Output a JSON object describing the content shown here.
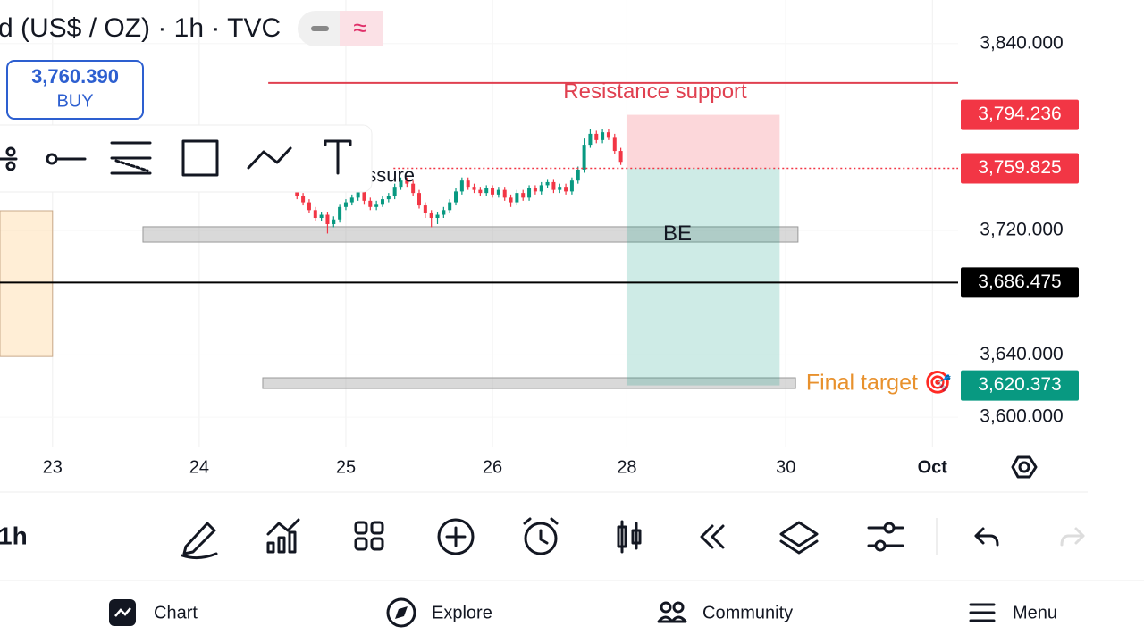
{
  "header": {
    "title": "d (US$ / OZ) · 1h · TVC",
    "quote": {
      "price": "3,760.390",
      "action": "BUY"
    }
  },
  "chart_data": {
    "type": "candlestick",
    "xlim": [
      -8.6,
      148.2
    ],
    "ylim": [
      3584,
      3868
    ],
    "xticks": [
      {
        "value": 0,
        "label": "23"
      },
      {
        "value": 24,
        "label": "24"
      },
      {
        "value": 48,
        "label": "25"
      },
      {
        "value": 72,
        "label": "26"
      },
      {
        "value": 94,
        "label": "28"
      },
      {
        "value": 120,
        "label": "30"
      },
      {
        "value": 144,
        "label": "Oct"
      }
    ],
    "yticks": [
      {
        "value": 3840,
        "label": "3,840.000"
      },
      {
        "value": 3720,
        "label": "3,720.000"
      },
      {
        "value": 3640,
        "label": "3,640.000"
      },
      {
        "value": 3600,
        "label": "3,600.000"
      }
    ],
    "up_color": "#089981",
    "down_color": "#f23645",
    "x": [
      40,
      41,
      42,
      43,
      44,
      45,
      46,
      47,
      48,
      49,
      50,
      51,
      52,
      53,
      54,
      55,
      56,
      57,
      58,
      59,
      60,
      61,
      62,
      63,
      64,
      65,
      66,
      67,
      68,
      69,
      70,
      71,
      72,
      73,
      74,
      75,
      76,
      77,
      78,
      79,
      80,
      81,
      82,
      83,
      84,
      85,
      86,
      87,
      88,
      89,
      90,
      91,
      92,
      93
    ],
    "open": [
      3745,
      3742,
      3738,
      3733,
      3728,
      3730,
      3724,
      3727,
      3735,
      3738,
      3741,
      3746,
      3739,
      3735,
      3737,
      3740,
      3742,
      3748,
      3752,
      3750,
      3744,
      3736,
      3731,
      3728,
      3730,
      3733,
      3738,
      3745,
      3752,
      3748,
      3746,
      3744,
      3747,
      3743,
      3746,
      3741,
      3738,
      3744,
      3741,
      3747,
      3745,
      3749,
      3751,
      3746,
      3748,
      3745,
      3752,
      3759,
      3775,
      3782,
      3778,
      3783,
      3780,
      3771
    ],
    "high": [
      3747,
      3744,
      3740,
      3735,
      3732,
      3732,
      3729,
      3737,
      3740,
      3743,
      3748,
      3748,
      3741,
      3739,
      3742,
      3744,
      3750,
      3754,
      3754,
      3752,
      3746,
      3738,
      3733,
      3732,
      3735,
      3740,
      3747,
      3754,
      3754,
      3750,
      3748,
      3749,
      3749,
      3748,
      3748,
      3743,
      3746,
      3746,
      3749,
      3749,
      3751,
      3753,
      3753,
      3750,
      3750,
      3754,
      3761,
      3779,
      3785,
      3784,
      3785,
      3785,
      3782,
      3773
    ],
    "low": [
      3740,
      3736,
      3731,
      3726,
      3726,
      3718,
      3722,
      3725,
      3733,
      3736,
      3739,
      3737,
      3733,
      3733,
      3735,
      3738,
      3740,
      3746,
      3748,
      3742,
      3734,
      3728,
      3722,
      3724,
      3728,
      3731,
      3736,
      3743,
      3746,
      3744,
      3742,
      3742,
      3741,
      3741,
      3739,
      3735,
      3736,
      3739,
      3739,
      3743,
      3743,
      3747,
      3744,
      3744,
      3743,
      3743,
      3750,
      3757,
      3773,
      3776,
      3776,
      3778,
      3769,
      3762
    ],
    "close": [
      3742,
      3738,
      3733,
      3728,
      3730,
      3724,
      3727,
      3735,
      3738,
      3741,
      3746,
      3739,
      3735,
      3737,
      3740,
      3742,
      3748,
      3752,
      3750,
      3744,
      3736,
      3731,
      3728,
      3730,
      3733,
      3738,
      3745,
      3752,
      3748,
      3746,
      3744,
      3747,
      3743,
      3746,
      3741,
      3738,
      3744,
      3741,
      3747,
      3745,
      3749,
      3751,
      3746,
      3748,
      3745,
      3752,
      3759,
      3775,
      3782,
      3778,
      3783,
      3780,
      3771,
      3764
    ],
    "price_labels": [
      {
        "value": 3794.236,
        "label": "3,794.236",
        "color": "#f23645"
      },
      {
        "value": 3759.825,
        "label": "3,759.825",
        "color": "#f23645",
        "line_from": 55.8,
        "line_style": "dotted"
      },
      {
        "value": 3686.475,
        "label": "3,686.475",
        "color": "#000000",
        "line_from": -8.6,
        "line_style": "solid"
      },
      {
        "value": 3620.373,
        "label": "3,620.373",
        "color": "#089981"
      }
    ],
    "resistance": {
      "price": 3814.7,
      "x": [
        35.3,
        148.2
      ],
      "label": "Resistance support",
      "color": "#e04050"
    },
    "position": {
      "x": [
        94,
        119
      ],
      "stop": 3794.236,
      "entry": 3759.825,
      "target": 3620.373
    },
    "zones": [
      {
        "x": [
          14.8,
          122
        ],
        "y": [
          3712.5,
          3722.3
        ],
        "label": "BE"
      },
      {
        "x": [
          34.4,
          121.6
        ],
        "y": [
          3618.4,
          3625.3
        ],
        "label": "Final target 🎯",
        "label_color": "#e8912d"
      }
    ],
    "box": {
      "x": [
        -8.6,
        0
      ],
      "y": [
        3639,
        3732.6
      ]
    },
    "notes": [
      {
        "text": "ssure",
        "x": 51.4,
        "price": 3754.5
      }
    ]
  },
  "toolbar": {
    "interval": "1h"
  },
  "nav": {
    "items": [
      "Chart",
      "Explore",
      "Community",
      "Menu"
    ]
  }
}
